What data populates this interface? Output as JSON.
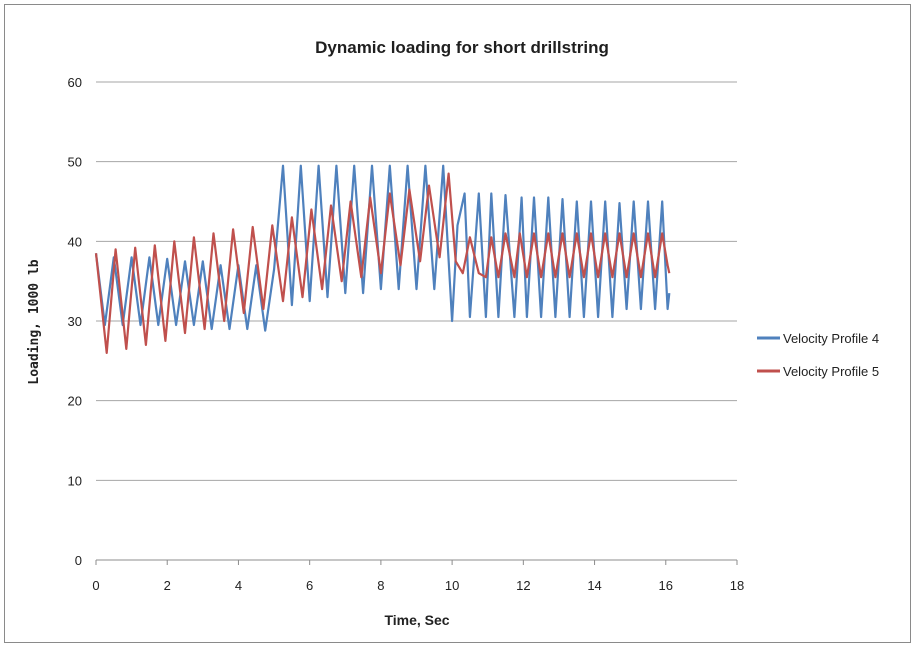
{
  "chart_data": {
    "type": "line",
    "title": "Dynamic loading for short drillstring",
    "xlabel": "Time, Sec",
    "ylabel": "Loading, 1000 lb",
    "xlim": [
      0,
      18
    ],
    "ylim": [
      0,
      60
    ],
    "x_ticks": [
      "0",
      "2",
      "4",
      "6",
      "8",
      "10",
      "12",
      "14",
      "16",
      "18"
    ],
    "y_ticks": [
      "0",
      "10",
      "20",
      "30",
      "40",
      "50",
      "60"
    ],
    "grid": "horizontal",
    "legend": "right",
    "series": [
      {
        "name": "Velocity Profile 4",
        "color": "#4f81bd",
        "x": [
          0,
          0.25,
          0.5,
          0.75,
          1,
          1.25,
          1.5,
          1.75,
          2,
          2.25,
          2.5,
          2.75,
          3,
          3.25,
          3.5,
          3.75,
          4,
          4.25,
          4.5,
          4.75,
          5,
          5.25,
          5.5,
          5.75,
          6,
          6.25,
          6.5,
          6.75,
          7,
          7.25,
          7.5,
          7.75,
          8,
          8.25,
          8.5,
          8.75,
          9,
          9.25,
          9.5,
          9.75,
          10,
          10.15,
          10.35,
          10.5,
          10.75,
          10.95,
          11.1,
          11.3,
          11.5,
          11.75,
          11.95,
          12.1,
          12.3,
          12.5,
          12.7,
          12.9,
          13.1,
          13.3,
          13.5,
          13.7,
          13.9,
          14.1,
          14.3,
          14.5,
          14.7,
          14.9,
          15.1,
          15.3,
          15.5,
          15.7,
          15.9,
          16.05,
          16.1
        ],
        "values": [
          38.5,
          29.5,
          38,
          29.5,
          38,
          29.5,
          38,
          29.5,
          37.8,
          29.5,
          37.5,
          29.5,
          37.5,
          29,
          37,
          29,
          37,
          29,
          37,
          28.8,
          36.5,
          49.5,
          32,
          49.5,
          32.5,
          49.5,
          33,
          49.5,
          33.5,
          49.5,
          33.5,
          49.5,
          34,
          49.5,
          34,
          49.5,
          34,
          49.5,
          34,
          49.5,
          30,
          42,
          46,
          30.5,
          46,
          30.5,
          46,
          30.5,
          45.8,
          30.5,
          45.5,
          30.5,
          45.5,
          30.5,
          45.5,
          30.5,
          45.3,
          30.5,
          45,
          30.5,
          45,
          30.5,
          45,
          30.5,
          44.8,
          31.5,
          45,
          31.5,
          45,
          31.5,
          45,
          31.5,
          33.5
        ]
      },
      {
        "name": "Velocity Profile 5",
        "color": "#c0504d",
        "x": [
          0,
          0.3,
          0.55,
          0.85,
          1.1,
          1.4,
          1.65,
          1.95,
          2.2,
          2.5,
          2.75,
          3.05,
          3.3,
          3.6,
          3.85,
          4.15,
          4.4,
          4.7,
          4.95,
          5.25,
          5.5,
          5.8,
          6.05,
          6.35,
          6.6,
          6.9,
          7.15,
          7.45,
          7.7,
          8,
          8.25,
          8.55,
          8.8,
          9.1,
          9.35,
          9.65,
          9.9,
          10.1,
          10.3,
          10.5,
          10.75,
          10.95,
          11.1,
          11.3,
          11.5,
          11.75,
          11.9,
          12.1,
          12.3,
          12.5,
          12.7,
          12.9,
          13.1,
          13.3,
          13.5,
          13.7,
          13.9,
          14.1,
          14.3,
          14.5,
          14.7,
          14.9,
          15.1,
          15.3,
          15.5,
          15.7,
          15.9,
          16.05,
          16.1
        ],
        "values": [
          38.5,
          26,
          39,
          26.5,
          39.2,
          27,
          39.5,
          27.5,
          40,
          28.5,
          40.5,
          29,
          41,
          30,
          41.5,
          31,
          41.8,
          31.5,
          42,
          32.5,
          43,
          33,
          44,
          34,
          44.5,
          35,
          45,
          35.5,
          45.5,
          36,
          46,
          37,
          46.5,
          37.5,
          47,
          38,
          48.5,
          37.5,
          36,
          40.5,
          36,
          35.5,
          40.5,
          35.5,
          41,
          35.5,
          41,
          35.5,
          41,
          35.5,
          41,
          35.5,
          41,
          35.5,
          41,
          35.5,
          41,
          35.5,
          41,
          35.5,
          41,
          35.5,
          41,
          35.5,
          41,
          35.5,
          41,
          37,
          36
        ]
      }
    ]
  }
}
